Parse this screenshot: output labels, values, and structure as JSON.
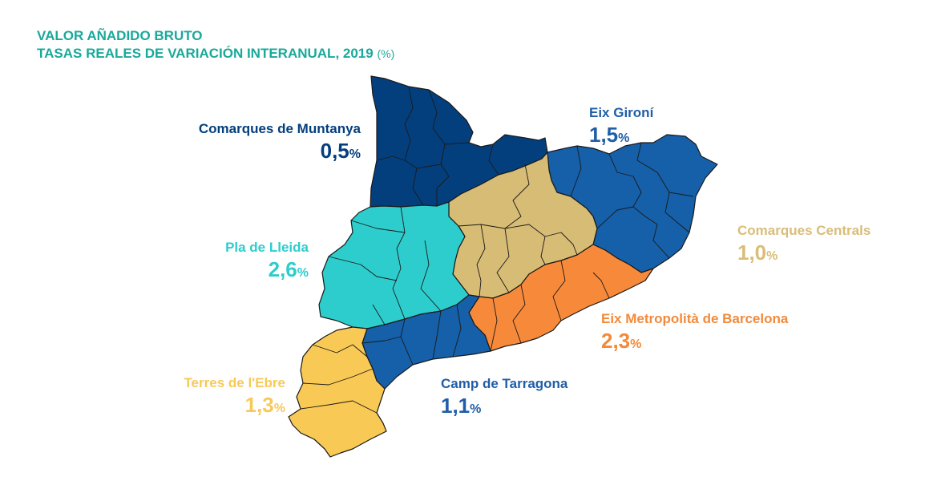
{
  "title": {
    "line1": "VALOR AÑADIDO BRUTO",
    "line2": "TASAS REALES DE VARIACIÓN INTERANUAL, 2019",
    "unit": "(%)"
  },
  "percent_symbol": "%",
  "regions": [
    {
      "id": "muntanya",
      "name": "Comarques de Muntanya",
      "value": "0,5",
      "color": "#043f7d"
    },
    {
      "id": "gironi",
      "name": "Eix Gironí",
      "value": "1,5",
      "color": "#1560a9"
    },
    {
      "id": "centrals",
      "name": "Comarques Centrals",
      "value": "1,0",
      "color": "#d7bc75"
    },
    {
      "id": "lleida",
      "name": "Pla de Lleida",
      "value": "2,6",
      "color": "#2ecdcd"
    },
    {
      "id": "metropolita",
      "name": "Eix Metropolità de Barcelona",
      "value": "2,3",
      "color": "#f78a3a"
    },
    {
      "id": "tarragona",
      "name": "Camp de Tarragona",
      "value": "1,1",
      "color": "#1560a9"
    },
    {
      "id": "ebre",
      "name": "Terres de l'Ebre",
      "value": "1,3",
      "color": "#f8c955"
    }
  ],
  "label_colors": {
    "muntanya": "#043f7d",
    "gironi": "#1f5ea8",
    "centrals": "#d9bd78",
    "lleida": "#2ecdcd",
    "metropolita": "#f28a3a",
    "tarragona": "#1f5ea8",
    "ebre": "#f6c95a"
  }
}
